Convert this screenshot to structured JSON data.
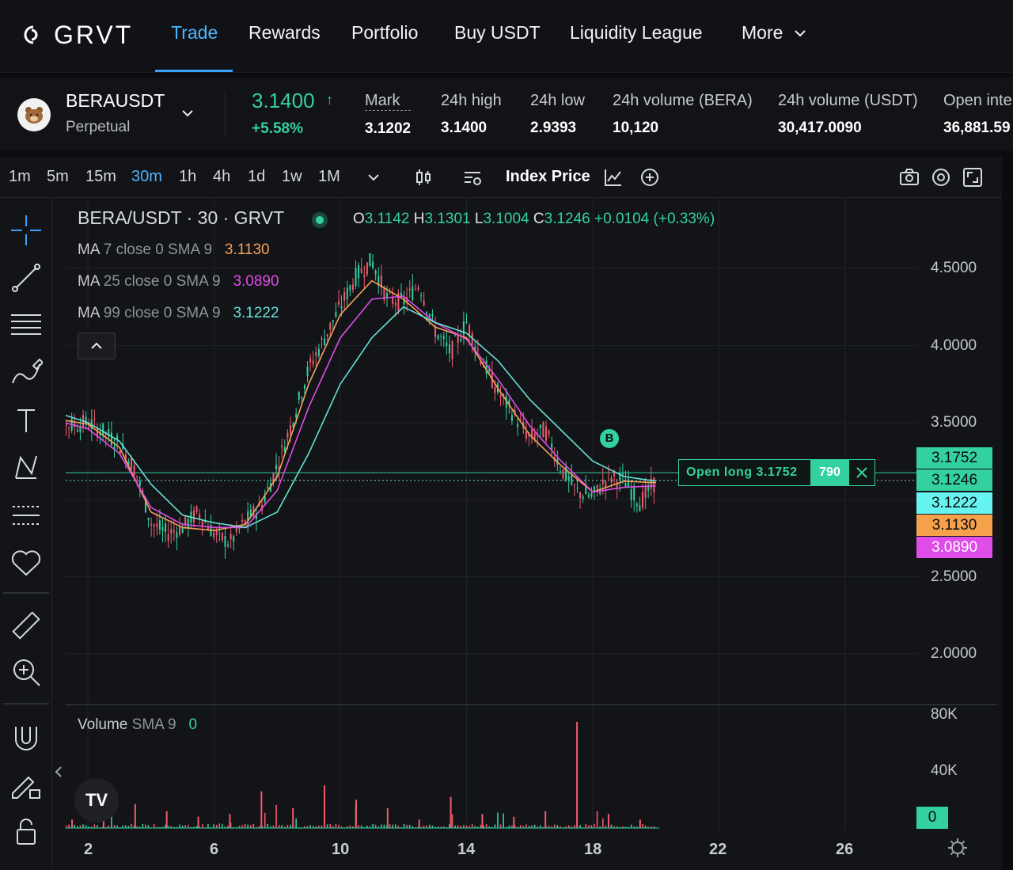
{
  "nav": {
    "logo_text": "GRVT",
    "items": [
      {
        "label": "Trade",
        "active": true
      },
      {
        "label": "Rewards"
      },
      {
        "label": "Portfolio"
      },
      {
        "label": "Buy USDT"
      },
      {
        "label": "Liquidity League"
      },
      {
        "label": "More"
      }
    ],
    "accent_color": "#4db5ff"
  },
  "ticker": {
    "pair": "BERAUSDT",
    "type": "Perpetual",
    "last_price": "3.1400",
    "last_arrow": "↑",
    "change_pct": "+5.58%",
    "stats": [
      {
        "label": "Mark",
        "value": "3.1202"
      },
      {
        "label": "24h high",
        "value": "3.1400"
      },
      {
        "label": "24h low",
        "value": "2.9393"
      },
      {
        "label": "24h volume (BERA)",
        "value": "10,120"
      },
      {
        "label": "24h volume (USDT)",
        "value": "30,417.0090"
      },
      {
        "label": "Open inte",
        "value": "36,881.59"
      }
    ],
    "positive_color": "#33d0a0"
  },
  "toolbar": {
    "timeframes": [
      "1m",
      "5m",
      "15m",
      "30m",
      "1h",
      "4h",
      "1d",
      "1w",
      "1M"
    ],
    "active_timeframe": "30m",
    "index_price_label": "Index Price",
    "icons": [
      "chevron-down-icon",
      "candles-icon",
      "indicators-icon",
      "line-chart-icon",
      "add-circle-icon",
      "camera-icon",
      "settings-icon",
      "fullscreen-icon"
    ]
  },
  "left_tools": [
    "crosshair-icon",
    "trend-line-icon",
    "fib-lines-icon",
    "brush-icon",
    "text-icon",
    "pattern-icon",
    "prediction-icon",
    "heart-icon",
    "ruler-icon",
    "zoom-in-icon",
    "magnet-icon",
    "lock-pencil-icon",
    "unlock-icon"
  ],
  "chart": {
    "title": "BERA/USDT · 30 · GRVT",
    "ohlc": {
      "o_label": "O",
      "o": "3.1142",
      "h_label": "H",
      "h": "3.1301",
      "l_label": "L",
      "l": "3.1004",
      "c_label": "C",
      "c": "3.1246",
      "change": "+0.0104 (+0.33%)"
    },
    "ma": [
      {
        "name": "MA",
        "params": "7 close 0 SMA 9",
        "value": "3.1130",
        "color": "#f5a25a"
      },
      {
        "name": "MA",
        "params": "25 close 0 SMA 9",
        "value": "3.0890",
        "color": "#e04ce8"
      },
      {
        "name": "MA",
        "params": "99 close 0 SMA 9",
        "value": "3.1222",
        "color": "#66e0d6"
      }
    ],
    "price_axis": [
      "4.5000",
      "4.0000",
      "3.5000",
      "2.5000",
      "2.0000"
    ],
    "price_tags": [
      {
        "value": "3.1752",
        "color": "#33d0a0"
      },
      {
        "value": "3.1246",
        "color": "#33d0a0"
      },
      {
        "value": "3.1222",
        "color": "#66f4f0"
      },
      {
        "value": "3.1130",
        "color": "#f5a04a"
      },
      {
        "value": "3.0890",
        "color": "#e04ce8"
      }
    ],
    "time_axis": [
      "2",
      "6",
      "10",
      "14",
      "18",
      "22",
      "26"
    ],
    "order": {
      "label": "Open long 3.1752",
      "qty": "790"
    },
    "marker": "B",
    "volume": {
      "label": "Volume",
      "params": "SMA 9",
      "value": "0",
      "axis": [
        "80K",
        "40K"
      ],
      "tag": "0"
    },
    "tv_logo": "TV"
  },
  "chart_data": {
    "type": "line",
    "title": "BERA/USDT · 30 · GRVT",
    "x_ticks": [
      "2",
      "6",
      "10",
      "14",
      "18",
      "22",
      "26"
    ],
    "ylim": [
      1.6,
      4.85
    ],
    "series": [
      {
        "name": "Price",
        "points": [
          [
            0.5,
            3.55
          ],
          [
            1,
            3.52
          ],
          [
            1.5,
            3.48
          ],
          [
            2,
            3.5
          ],
          [
            2.5,
            3.44
          ],
          [
            3,
            3.36
          ],
          [
            3.5,
            3.2
          ],
          [
            4,
            2.85
          ],
          [
            4.5,
            2.78
          ],
          [
            5,
            2.82
          ],
          [
            5.5,
            2.92
          ],
          [
            6,
            2.78
          ],
          [
            6.5,
            2.72
          ],
          [
            7,
            2.86
          ],
          [
            7.5,
            2.96
          ],
          [
            8,
            3.22
          ],
          [
            8.5,
            3.52
          ],
          [
            9,
            3.85
          ],
          [
            9.5,
            4.05
          ],
          [
            10,
            4.25
          ],
          [
            10.5,
            4.45
          ],
          [
            11,
            4.55
          ],
          [
            11.5,
            4.3
          ],
          [
            12,
            4.28
          ],
          [
            12.5,
            4.4
          ],
          [
            13,
            4.1
          ],
          [
            13.5,
            3.95
          ],
          [
            14,
            4.15
          ],
          [
            14.5,
            3.9
          ],
          [
            15,
            3.7
          ],
          [
            15.5,
            3.55
          ],
          [
            16,
            3.4
          ],
          [
            16.5,
            3.45
          ],
          [
            17,
            3.2
          ],
          [
            17.5,
            3.05
          ],
          [
            18,
            3.02
          ],
          [
            18.5,
            3.15
          ],
          [
            19,
            3.12
          ],
          [
            19.5,
            2.98
          ],
          [
            20,
            3.12
          ]
        ]
      },
      {
        "name": "MA 7",
        "color": "#f5a25a",
        "points": [
          [
            0.5,
            3.54
          ],
          [
            2,
            3.49
          ],
          [
            3,
            3.34
          ],
          [
            4,
            2.92
          ],
          [
            5,
            2.82
          ],
          [
            6,
            2.8
          ],
          [
            7,
            2.84
          ],
          [
            8,
            3.15
          ],
          [
            9,
            3.75
          ],
          [
            10,
            4.2
          ],
          [
            11,
            4.42
          ],
          [
            12,
            4.3
          ],
          [
            13,
            4.12
          ],
          [
            14,
            4.05
          ],
          [
            15,
            3.72
          ],
          [
            16,
            3.42
          ],
          [
            17,
            3.22
          ],
          [
            18,
            3.05
          ],
          [
            19,
            3.12
          ],
          [
            20,
            3.11
          ]
        ]
      },
      {
        "name": "MA 25",
        "color": "#e04ce8",
        "points": [
          [
            0.5,
            3.54
          ],
          [
            2,
            3.46
          ],
          [
            3,
            3.3
          ],
          [
            4,
            2.95
          ],
          [
            5,
            2.84
          ],
          [
            6,
            2.82
          ],
          [
            7,
            2.82
          ],
          [
            8,
            3.06
          ],
          [
            9,
            3.6
          ],
          [
            10,
            4.05
          ],
          [
            11,
            4.3
          ],
          [
            12,
            4.32
          ],
          [
            13,
            4.15
          ],
          [
            14,
            4.04
          ],
          [
            15,
            3.78
          ],
          [
            16,
            3.48
          ],
          [
            17,
            3.25
          ],
          [
            18,
            3.05
          ],
          [
            19,
            3.08
          ],
          [
            20,
            3.09
          ]
        ]
      },
      {
        "name": "MA 99",
        "color": "#66e0d6",
        "points": [
          [
            0.5,
            3.6
          ],
          [
            2,
            3.5
          ],
          [
            3,
            3.38
          ],
          [
            4,
            3.1
          ],
          [
            5,
            2.9
          ],
          [
            6,
            2.85
          ],
          [
            7,
            2.82
          ],
          [
            8,
            2.92
          ],
          [
            9,
            3.3
          ],
          [
            10,
            3.75
          ],
          [
            11,
            4.05
          ],
          [
            12,
            4.25
          ],
          [
            13,
            4.15
          ],
          [
            14,
            4.08
          ],
          [
            15,
            3.9
          ],
          [
            16,
            3.65
          ],
          [
            17,
            3.45
          ],
          [
            18,
            3.25
          ],
          [
            19,
            3.15
          ],
          [
            20,
            3.12
          ]
        ]
      }
    ],
    "volume_ylim": [
      0,
      80000
    ],
    "volume_axis": [
      "80K",
      "40K"
    ],
    "volume": [
      [
        0.5,
        2000
      ],
      [
        1.5,
        6000
      ],
      [
        2.5,
        9000
      ],
      [
        3.5,
        17000
      ],
      [
        4.5,
        12000
      ],
      [
        5.5,
        8000
      ],
      [
        6.5,
        10000
      ],
      [
        7.5,
        26000
      ],
      [
        8.5,
        14000
      ],
      [
        9.5,
        30000
      ],
      [
        10.5,
        20000
      ],
      [
        11.5,
        14000
      ],
      [
        12.5,
        6000
      ],
      [
        13.5,
        22000
      ],
      [
        14.5,
        10000
      ],
      [
        15.5,
        8000
      ],
      [
        16.5,
        12000
      ],
      [
        17.5,
        75000
      ],
      [
        18.5,
        10000
      ],
      [
        19.5,
        6000
      ]
    ]
  }
}
